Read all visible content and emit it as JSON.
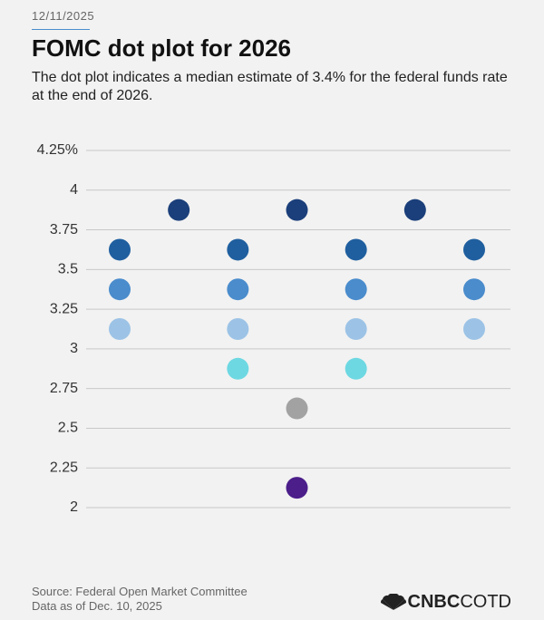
{
  "date": "12/11/2025",
  "source": [
    "Source: Federal Open Market Committee",
    "Data as of Dec. 10, 2025"
  ],
  "logo": [
    "CNBC",
    "COTD"
  ],
  "chart_data": {
    "type": "dot",
    "title": "FOMC dot plot for 2026",
    "subtitle": "The dot plot indicates a median estimate of 3.4% for the federal funds rate at the end of 2026.",
    "categories": [
      null,
      null,
      null,
      null,
      null,
      null,
      null
    ],
    "ylim": [
      2,
      4.25
    ],
    "yticks": [
      2,
      2.25,
      2.5,
      2.75,
      3,
      3.25,
      3.5,
      3.75,
      4,
      {
        "value": 4.25,
        "label": "4.25%"
      }
    ],
    "grid": true,
    "series": [
      {
        "color": "#1b3f7a",
        "values": [
          null,
          3.875,
          null,
          3.875,
          null,
          3.875,
          null
        ]
      },
      {
        "color": "#1f5f9f",
        "values": [
          3.625,
          null,
          3.625,
          null,
          3.625,
          null,
          3.625
        ]
      },
      {
        "color": "#4a8ccc",
        "values": [
          3.375,
          null,
          3.375,
          null,
          3.375,
          null,
          3.375
        ]
      },
      {
        "color": "#9cc3e6",
        "values": [
          3.125,
          null,
          3.125,
          null,
          3.125,
          null,
          3.125
        ]
      },
      {
        "color": "#6dd8e2",
        "values": [
          null,
          null,
          2.875,
          null,
          2.875,
          null,
          null
        ]
      },
      {
        "color": "#a2a2a2",
        "values": [
          null,
          null,
          null,
          2.625,
          null,
          null,
          null
        ]
      },
      {
        "color": "#4b1e8a",
        "values": [
          null,
          null,
          null,
          2.125,
          null,
          null,
          null
        ]
      }
    ]
  }
}
